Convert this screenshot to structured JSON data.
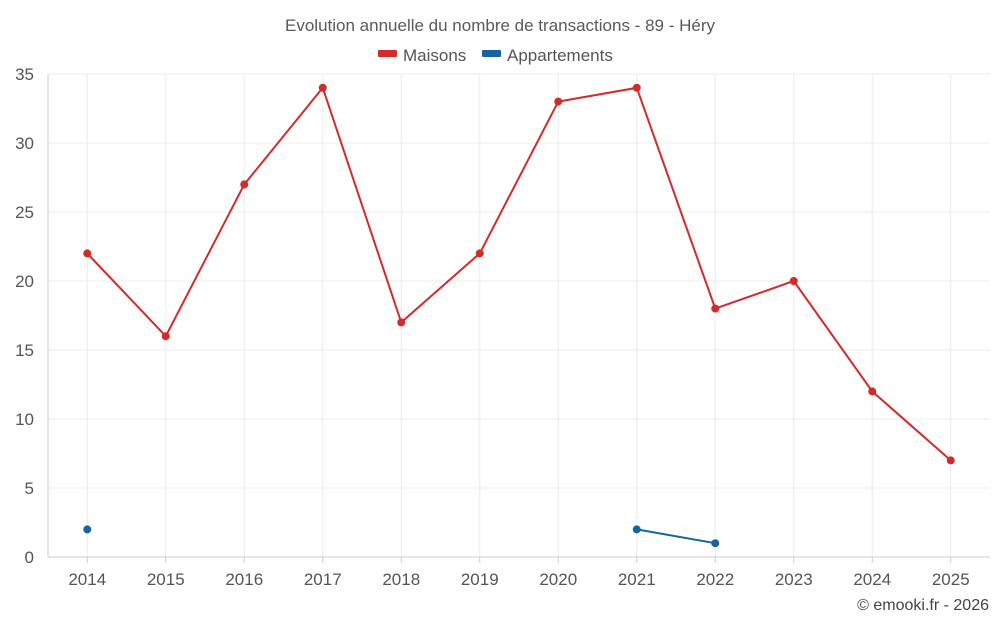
{
  "chart_data": {
    "type": "line",
    "title": "Evolution annuelle du nombre de transactions - 89 - Héry",
    "xlabel": "",
    "ylabel": "",
    "categories": [
      "2014",
      "2015",
      "2016",
      "2017",
      "2018",
      "2019",
      "2020",
      "2021",
      "2022",
      "2023",
      "2024",
      "2025"
    ],
    "ylim": [
      0,
      35
    ],
    "yticks": [
      0,
      5,
      10,
      15,
      20,
      25,
      30,
      35
    ],
    "grid": true,
    "legend_position": "top-center",
    "series": [
      {
        "name": "Maisons",
        "color": "#d32a2a",
        "values": [
          22,
          16,
          27,
          34,
          17,
          22,
          33,
          34,
          18,
          20,
          12,
          7
        ]
      },
      {
        "name": "Appartements",
        "color": "#1565a0",
        "values": [
          2,
          null,
          null,
          null,
          null,
          null,
          null,
          2,
          1,
          null,
          null,
          null
        ]
      }
    ]
  },
  "credit": "© emooki.fr - 2026"
}
